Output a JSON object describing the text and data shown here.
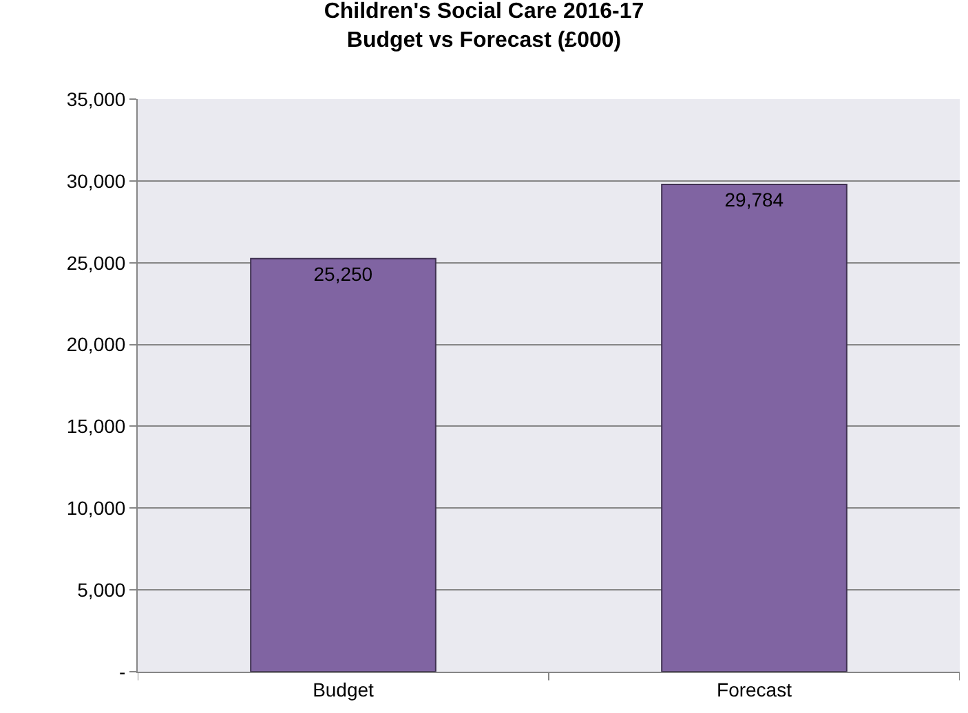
{
  "chart_data": {
    "type": "bar",
    "title": "Children's Social Care 2016-17\nBudget vs Forecast (£000)",
    "categories": [
      "Budget",
      "Forecast"
    ],
    "series": [
      {
        "color": "#8064a2",
        "values": [
          25250,
          29784
        ],
        "value_labels": [
          "25,250",
          "29,784"
        ]
      }
    ],
    "ylim": [
      0,
      35000
    ],
    "yticks": [
      {
        "value": 0,
        "label": "-"
      },
      {
        "value": 5000,
        "label": "5,000"
      },
      {
        "value": 10000,
        "label": "10,000"
      },
      {
        "value": 15000,
        "label": "15,000"
      },
      {
        "value": 20000,
        "label": "20,000"
      },
      {
        "value": 25000,
        "label": "25,000"
      },
      {
        "value": 30000,
        "label": "30,000"
      },
      {
        "value": 35000,
        "label": "35,000"
      }
    ],
    "grid": "y",
    "legend": false
  }
}
